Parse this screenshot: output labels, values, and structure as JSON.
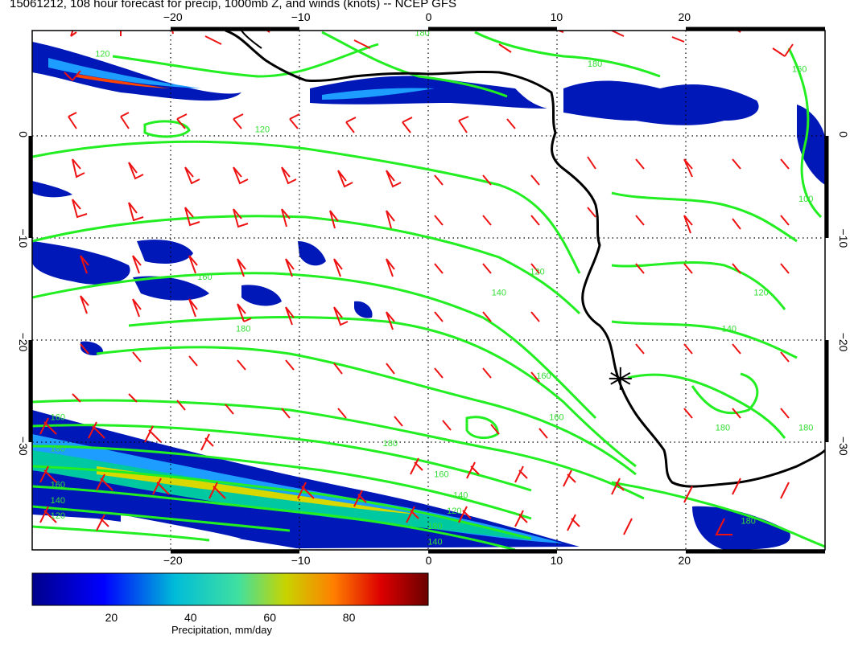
{
  "title": "15061212, 108 hour forecast for precip, 1000mb Z, and winds (knots) -- NCEP GFS",
  "map": {
    "lon_range": [
      -31,
      31
    ],
    "lat_range": [
      -40,
      10
    ],
    "lon_ticks": [
      -20,
      -10,
      0,
      10,
      20
    ],
    "lat_ticks": [
      0,
      -10,
      -20,
      -30
    ],
    "lon_tick_labels": [
      "−20",
      "−10",
      "0",
      "10",
      "20"
    ],
    "lat_tick_labels": [
      "0",
      "−10",
      "−20",
      "−30"
    ],
    "gridlines": true,
    "colors": {
      "coast": "#000000",
      "contour": "#22ee22",
      "barb": "#ee1111",
      "grid": "#000000"
    },
    "contour_labels": [
      {
        "text": "120",
        "lon": -25.5,
        "lat": 7.5
      },
      {
        "text": "120",
        "lon": -13,
        "lat": 0.2
      },
      {
        "text": "160",
        "lon": -17.5,
        "lat": -14
      },
      {
        "text": "180",
        "lon": -14.5,
        "lat": -19
      },
      {
        "text": "160",
        "lon": -29,
        "lat": -27.5
      },
      {
        "text": "180",
        "lon": -29,
        "lat": -30.5
      },
      {
        "text": "160",
        "lon": -29,
        "lat": -34
      },
      {
        "text": "140",
        "lon": -29,
        "lat": -35.5
      },
      {
        "text": "120",
        "lon": -29,
        "lat": -37
      },
      {
        "text": "180",
        "lon": -3,
        "lat": -30
      },
      {
        "text": "160",
        "lon": 1,
        "lat": -33
      },
      {
        "text": "140",
        "lon": 2.5,
        "lat": -35
      },
      {
        "text": "120",
        "lon": 2,
        "lat": -36.5
      },
      {
        "text": "180",
        "lon": 0.5,
        "lat": -38
      },
      {
        "text": "140",
        "lon": 0.5,
        "lat": -39.5
      },
      {
        "text": "120",
        "lon": 8.5,
        "lat": -13.5
      },
      {
        "text": "140",
        "lon": 5.5,
        "lat": -15.5
      },
      {
        "text": "160",
        "lon": 9,
        "lat": -23.5
      },
      {
        "text": "160",
        "lon": 10,
        "lat": -27.5
      },
      {
        "text": "180",
        "lon": 23,
        "lat": -28.5
      },
      {
        "text": "120",
        "lon": 26,
        "lat": -15.5
      },
      {
        "text": "140",
        "lon": 23.5,
        "lat": -19
      },
      {
        "text": "100",
        "lon": 29.5,
        "lat": -6.5
      },
      {
        "text": "160",
        "lon": 29,
        "lat": 6
      },
      {
        "text": "180",
        "lon": 13,
        "lat": 6.5
      },
      {
        "text": "180",
        "lon": -0.5,
        "lat": 9.5
      },
      {
        "text": "180",
        "lon": 25,
        "lat": -37.5
      },
      {
        "text": "180",
        "lon": 29.5,
        "lat": -28.5
      }
    ],
    "station_marker": {
      "lon": 15,
      "lat": -23.5
    }
  },
  "colorbar": {
    "ticks": [
      20,
      40,
      60,
      80
    ],
    "tick_labels": [
      "20",
      "40",
      "60",
      "80"
    ],
    "range": [
      0,
      100
    ],
    "label": "Precipitation, mm/day"
  }
}
